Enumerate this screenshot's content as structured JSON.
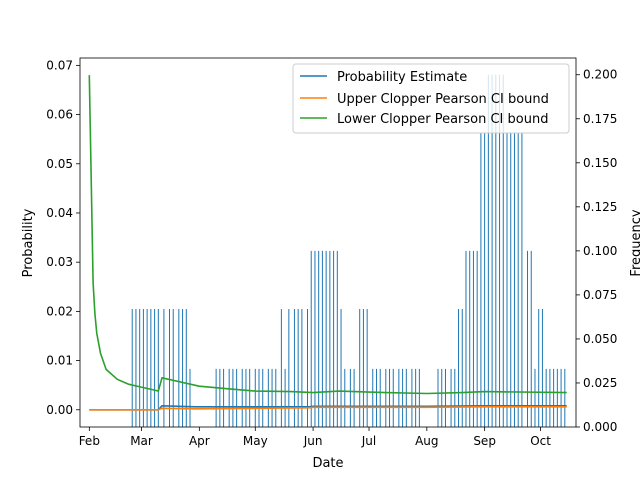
{
  "chart_data": {
    "type": "line",
    "title": "",
    "xlabel": "Date",
    "ylabel": "Probability",
    "y2label": "Frequency",
    "x_ticks": [
      "Feb",
      "Mar",
      "Apr",
      "May",
      "Jun",
      "Jul",
      "Aug",
      "Sep",
      "Oct"
    ],
    "x_tick_dates": [
      "2023-02-01",
      "2023-03-01",
      "2023-04-01",
      "2023-05-01",
      "2023-06-01",
      "2023-07-01",
      "2023-08-01",
      "2023-09-01",
      "2023-10-01"
    ],
    "xlim": [
      "2023-01-27",
      "2023-10-20"
    ],
    "ylim": [
      -0.0035,
      0.0715
    ],
    "y_ticks": [
      "0.00",
      "0.01",
      "0.02",
      "0.03",
      "0.04",
      "0.05",
      "0.06",
      "0.07"
    ],
    "y2lim": [
      0,
      0.2095
    ],
    "y2_ticks": [
      "0.000",
      "0.025",
      "0.050",
      "0.075",
      "0.100",
      "0.125",
      "0.150",
      "0.175",
      "0.200"
    ],
    "legend_position": "top-right",
    "grid": false,
    "series": [
      {
        "name": "Probability Estimate",
        "color": "#1f77b4",
        "points": [
          [
            "2023-02-01",
            0
          ],
          [
            "2023-02-24",
            0
          ],
          [
            "2023-03-10",
            0
          ],
          [
            "2023-03-12",
            0.0008
          ],
          [
            "2023-03-30",
            0.0006
          ],
          [
            "2023-05-01",
            0.0006
          ],
          [
            "2023-05-30",
            0.0006
          ],
          [
            "2023-06-01",
            0.0007
          ],
          [
            "2023-07-01",
            0.0007
          ],
          [
            "2023-07-31",
            0.0007
          ],
          [
            "2023-08-31",
            0.0008
          ],
          [
            "2023-10-15",
            0.0008
          ]
        ]
      },
      {
        "name": "Upper Clopper Pearson CI bound",
        "color": "#ff7f0e",
        "points": [
          [
            "2023-02-01",
            0
          ],
          [
            "2023-02-24",
            0
          ],
          [
            "2023-03-10",
            0
          ],
          [
            "2023-03-12",
            0.0003
          ],
          [
            "2023-03-30",
            0.0002
          ],
          [
            "2023-05-01",
            0.0003
          ],
          [
            "2023-05-30",
            0.0004
          ],
          [
            "2023-06-01",
            0.0005
          ],
          [
            "2023-07-01",
            0.0005
          ],
          [
            "2023-07-31",
            0.0005
          ],
          [
            "2023-08-31",
            0.0006
          ],
          [
            "2023-10-15",
            0.0006
          ]
        ]
      },
      {
        "name": "Lower Clopper Pearson CI bound",
        "color": "#2ca02c",
        "points": [
          [
            "2023-02-01",
            0.068
          ],
          [
            "2023-02-03",
            0.0258
          ],
          [
            "2023-02-04",
            0.0195
          ],
          [
            "2023-02-05",
            0.0155
          ],
          [
            "2023-02-07",
            0.0115
          ],
          [
            "2023-02-10",
            0.0082
          ],
          [
            "2023-02-16",
            0.0062
          ],
          [
            "2023-02-22",
            0.0052
          ],
          [
            "2023-03-02",
            0.0045
          ],
          [
            "2023-03-08",
            0.004
          ],
          [
            "2023-03-10",
            0.0038
          ],
          [
            "2023-03-12",
            0.0065
          ],
          [
            "2023-03-20",
            0.0058
          ],
          [
            "2023-04-01",
            0.0048
          ],
          [
            "2023-04-15",
            0.0043
          ],
          [
            "2023-05-01",
            0.0038
          ],
          [
            "2023-05-20",
            0.0037
          ],
          [
            "2023-06-01",
            0.0035
          ],
          [
            "2023-06-15",
            0.0038
          ],
          [
            "2023-07-01",
            0.0036
          ],
          [
            "2023-08-01",
            0.0033
          ],
          [
            "2023-08-20",
            0.0035
          ],
          [
            "2023-09-01",
            0.0037
          ],
          [
            "2023-10-15",
            0.0035
          ]
        ]
      }
    ],
    "frequency_bars": {
      "color": "#1f77b4",
      "bars": [
        [
          "2023-02-24",
          0.067
        ],
        [
          "2023-02-26",
          0.067
        ],
        [
          "2023-02-28",
          0.067
        ],
        [
          "2023-03-02",
          0.067
        ],
        [
          "2023-03-04",
          0.067
        ],
        [
          "2023-03-06",
          0.067
        ],
        [
          "2023-03-08",
          0.067
        ],
        [
          "2023-03-10",
          0.067
        ],
        [
          "2023-03-13",
          0.067
        ],
        [
          "2023-03-16",
          0.067
        ],
        [
          "2023-03-18",
          0.067
        ],
        [
          "2023-03-21",
          0.067
        ],
        [
          "2023-03-23",
          0.067
        ],
        [
          "2023-03-25",
          0.067
        ],
        [
          "2023-03-27",
          0.033
        ],
        [
          "2023-04-10",
          0.033
        ],
        [
          "2023-04-12",
          0.033
        ],
        [
          "2023-04-14",
          0.033
        ],
        [
          "2023-04-17",
          0.033
        ],
        [
          "2023-04-19",
          0.033
        ],
        [
          "2023-04-21",
          0.033
        ],
        [
          "2023-04-24",
          0.033
        ],
        [
          "2023-04-26",
          0.033
        ],
        [
          "2023-04-28",
          0.033
        ],
        [
          "2023-05-01",
          0.033
        ],
        [
          "2023-05-03",
          0.033
        ],
        [
          "2023-05-05",
          0.033
        ],
        [
          "2023-05-08",
          0.033
        ],
        [
          "2023-05-10",
          0.033
        ],
        [
          "2023-05-12",
          0.033
        ],
        [
          "2023-05-15",
          0.067
        ],
        [
          "2023-05-17",
          0.033
        ],
        [
          "2023-05-19",
          0.067
        ],
        [
          "2023-05-22",
          0.067
        ],
        [
          "2023-05-24",
          0.067
        ],
        [
          "2023-05-26",
          0.067
        ],
        [
          "2023-05-29",
          0.067
        ],
        [
          "2023-05-31",
          0.1
        ],
        [
          "2023-06-02",
          0.1
        ],
        [
          "2023-06-04",
          0.1
        ],
        [
          "2023-06-06",
          0.1
        ],
        [
          "2023-06-08",
          0.1
        ],
        [
          "2023-06-10",
          0.1
        ],
        [
          "2023-06-12",
          0.1
        ],
        [
          "2023-06-14",
          0.1
        ],
        [
          "2023-06-16",
          0.067
        ],
        [
          "2023-06-18",
          0.033
        ],
        [
          "2023-06-21",
          0.033
        ],
        [
          "2023-06-23",
          0.033
        ],
        [
          "2023-06-26",
          0.067
        ],
        [
          "2023-06-28",
          0.067
        ],
        [
          "2023-06-30",
          0.067
        ],
        [
          "2023-07-03",
          0.033
        ],
        [
          "2023-07-05",
          0.033
        ],
        [
          "2023-07-07",
          0.033
        ],
        [
          "2023-07-10",
          0.033
        ],
        [
          "2023-07-12",
          0.033
        ],
        [
          "2023-07-14",
          0.033
        ],
        [
          "2023-07-17",
          0.033
        ],
        [
          "2023-07-19",
          0.033
        ],
        [
          "2023-07-21",
          0.033
        ],
        [
          "2023-07-24",
          0.033
        ],
        [
          "2023-07-26",
          0.033
        ],
        [
          "2023-07-28",
          0.033
        ],
        [
          "2023-08-07",
          0.033
        ],
        [
          "2023-08-09",
          0.033
        ],
        [
          "2023-08-11",
          0.033
        ],
        [
          "2023-08-14",
          0.033
        ],
        [
          "2023-08-16",
          0.033
        ],
        [
          "2023-08-18",
          0.067
        ],
        [
          "2023-08-20",
          0.067
        ],
        [
          "2023-08-22",
          0.1
        ],
        [
          "2023-08-24",
          0.1
        ],
        [
          "2023-08-26",
          0.1
        ],
        [
          "2023-08-28",
          0.1
        ],
        [
          "2023-08-30",
          0.167
        ],
        [
          "2023-09-01",
          0.167
        ],
        [
          "2023-09-03",
          0.2
        ],
        [
          "2023-09-05",
          0.2
        ],
        [
          "2023-09-07",
          0.2
        ],
        [
          "2023-09-09",
          0.2
        ],
        [
          "2023-09-11",
          0.2
        ],
        [
          "2023-09-13",
          0.167
        ],
        [
          "2023-09-15",
          0.167
        ],
        [
          "2023-09-17",
          0.167
        ],
        [
          "2023-09-19",
          0.167
        ],
        [
          "2023-09-21",
          0.167
        ],
        [
          "2023-09-24",
          0.1
        ],
        [
          "2023-09-26",
          0.1
        ],
        [
          "2023-09-28",
          0.033
        ],
        [
          "2023-09-30",
          0.067
        ],
        [
          "2023-10-02",
          0.067
        ],
        [
          "2023-10-04",
          0.033
        ],
        [
          "2023-10-06",
          0.033
        ],
        [
          "2023-10-08",
          0.033
        ],
        [
          "2023-10-10",
          0.033
        ],
        [
          "2023-10-12",
          0.033
        ],
        [
          "2023-10-14",
          0.033
        ]
      ]
    }
  }
}
